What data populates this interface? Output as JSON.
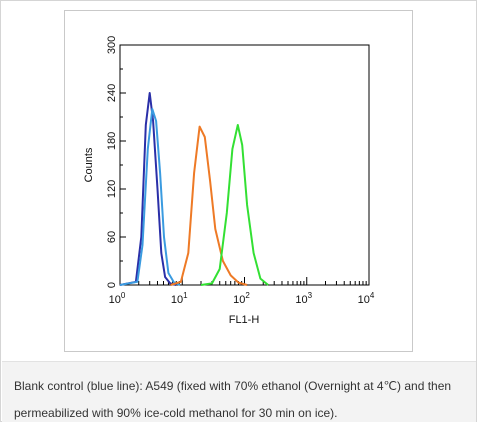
{
  "chart_data": {
    "type": "line",
    "xlabel": "FL1-H",
    "ylabel": "Counts",
    "x_scale": "log",
    "xlim": [
      1,
      10000
    ],
    "ylim": [
      0,
      300
    ],
    "x_ticks": [
      {
        "value": 1,
        "base": "10",
        "exp": "0"
      },
      {
        "value": 10,
        "base": "10",
        "exp": "1"
      },
      {
        "value": 100,
        "base": "10",
        "exp": "2"
      },
      {
        "value": 1000,
        "base": "10",
        "exp": "3"
      },
      {
        "value": 10000,
        "base": "10",
        "exp": "4"
      }
    ],
    "y_ticks": [
      0,
      60,
      120,
      180,
      240,
      300
    ],
    "grid": false,
    "series": [
      {
        "color": "#2a2fa8",
        "x": [
          1.0,
          1.8,
          2.2,
          2.6,
          3.0,
          3.4,
          4.0,
          4.6,
          5.3,
          6.4,
          8.0
        ],
        "y": [
          0,
          4,
          60,
          200,
          240,
          205,
          120,
          40,
          10,
          2,
          0
        ]
      },
      {
        "color": "#3a9be0",
        "x": [
          1.0,
          1.9,
          2.3,
          2.8,
          3.3,
          3.8,
          4.4,
          5.1,
          6.0,
          7.4,
          9.2
        ],
        "y": [
          0,
          4,
          50,
          170,
          220,
          205,
          140,
          60,
          15,
          3,
          0
        ]
      },
      {
        "color": "#ee7a26",
        "x": [
          6.5,
          9.5,
          12.5,
          15.5,
          19.0,
          23.0,
          28.0,
          34.0,
          45.0,
          60.0,
          80.0,
          110.0
        ],
        "y": [
          0,
          4,
          40,
          140,
          198,
          185,
          130,
          70,
          30,
          12,
          3,
          0
        ]
      },
      {
        "color": "#33e033",
        "x": [
          20.0,
          30.0,
          40.0,
          52.0,
          64.0,
          78.0,
          92.0,
          110.0,
          140.0,
          180.0,
          240.0
        ],
        "y": [
          0,
          2,
          20,
          90,
          170,
          200,
          175,
          100,
          40,
          8,
          0
        ]
      }
    ]
  },
  "caption": {
    "text": "Blank control (blue line): A549 (fixed with 70% ethanol (Overnight at 4℃) and then permeabilized with 90% ice-cold methanol for 30 min on ice)."
  }
}
